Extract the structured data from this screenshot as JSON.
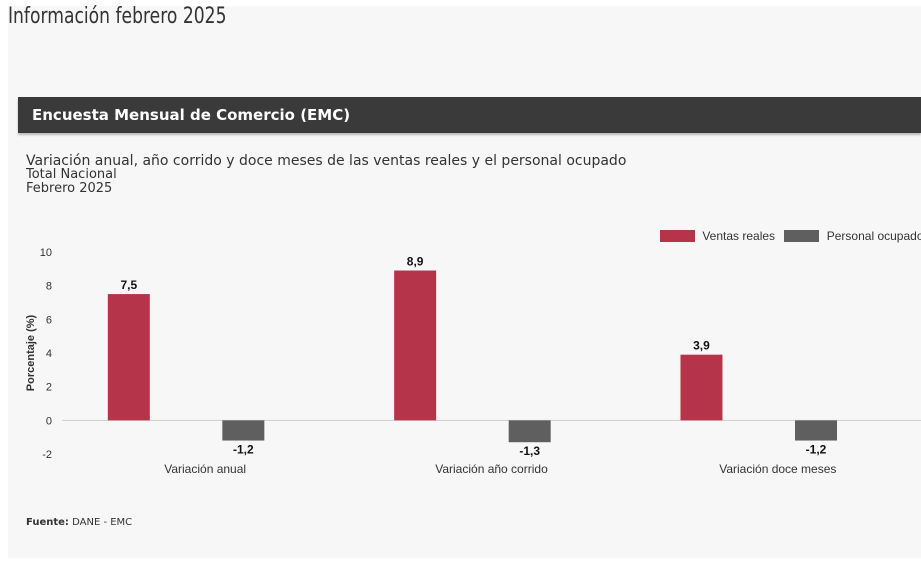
{
  "page": {
    "title": "Información febrero 2025"
  },
  "section": {
    "header": "Encuesta Mensual de Comercio (EMC)"
  },
  "chart_data": {
    "type": "bar",
    "title": "Variación anual, año corrido y doce meses de las ventas reales y el personal ocupado",
    "subtitle_lines": [
      "Total Nacional",
      "Febrero 2025"
    ],
    "xlabel": "",
    "ylabel": "Porcentaje (%)",
    "ylim": [
      -2,
      10
    ],
    "yticks": [
      -2,
      0,
      2,
      4,
      6,
      8,
      10
    ],
    "grid": false,
    "legend_position": "top-right",
    "categories": [
      "Variación anual",
      "Variación año corrido",
      "Variación doce meses"
    ],
    "series": [
      {
        "name": "Ventas reales",
        "color": "#b5344a",
        "values": [
          7.5,
          8.9,
          3.9
        ],
        "labels": [
          "7,5",
          "8,9",
          "3,9"
        ]
      },
      {
        "name": "Personal ocupado",
        "color": "#5f5f5f",
        "values": [
          -1.2,
          -1.3,
          -1.2
        ],
        "labels": [
          "-1,2",
          "-1,3",
          "-1,2"
        ]
      }
    ]
  },
  "source": {
    "label": "Fuente:",
    "text": "DANE - EMC"
  }
}
